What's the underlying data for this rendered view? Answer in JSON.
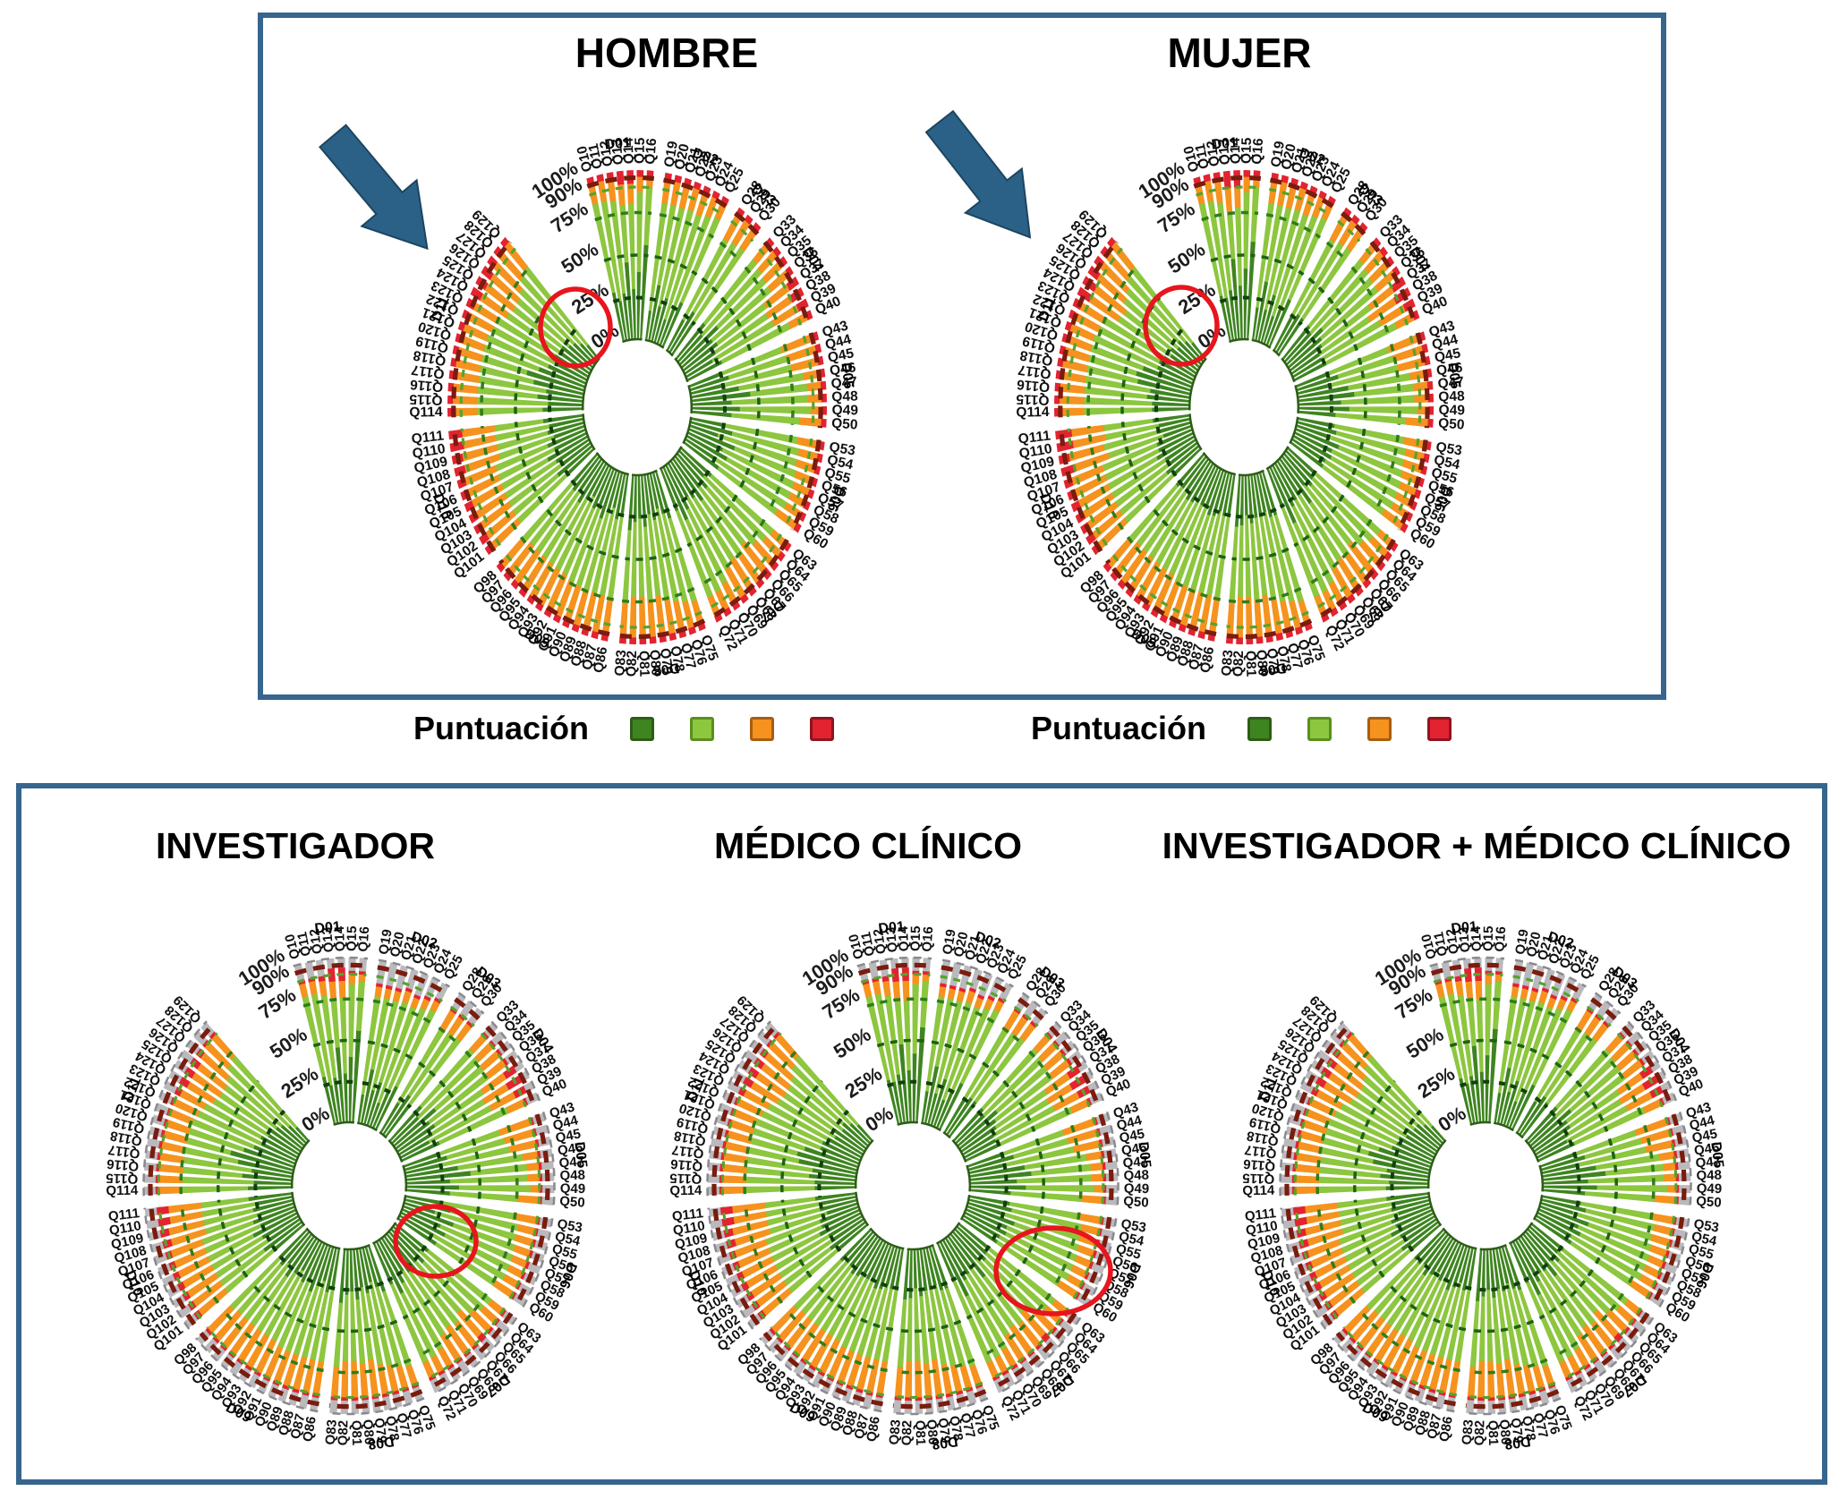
{
  "legend": {
    "label": "Puntuación",
    "colors": [
      "#3e8420",
      "#8dc63f",
      "#f6921e",
      "#e22330"
    ],
    "border_colors": [
      "#2e5c16",
      "#5a8f1d",
      "#a65e12",
      "#8f1420"
    ],
    "no_data_color": "#b9b9be"
  },
  "axis": {
    "ticks": [
      {
        "label": "100%",
        "value": 100
      },
      {
        "label": "90%",
        "value": 90
      },
      {
        "label": "75%",
        "value": 75
      },
      {
        "label": "50%",
        "value": 50
      },
      {
        "label": "25%",
        "value": 25
      },
      {
        "label": "0%",
        "value": 0
      }
    ],
    "guide_rings": [
      25,
      50,
      75,
      90,
      95.5
    ]
  },
  "groups": [
    {
      "id": "D01",
      "questions": [
        "Q10",
        "Q11",
        "Q12",
        "Q13",
        "Q14",
        "Q15",
        "Q16"
      ]
    },
    {
      "id": "D02",
      "questions": [
        "Q19",
        "Q20",
        "Q21",
        "Q22",
        "Q23",
        "Q24",
        "Q25"
      ]
    },
    {
      "id": "D03",
      "questions": [
        "Q28",
        "Q29",
        "Q30"
      ]
    },
    {
      "id": "D04",
      "questions": [
        "Q33",
        "Q34",
        "Q35",
        "Q36",
        "Q37",
        "Q38",
        "Q39",
        "Q40"
      ]
    },
    {
      "id": "D05",
      "questions": [
        "Q43",
        "Q44",
        "Q45",
        "Q46",
        "Q47",
        "Q48",
        "Q49",
        "Q50"
      ]
    },
    {
      "id": "D06",
      "questions": [
        "Q53",
        "Q54",
        "Q55",
        "Q56",
        "Q57",
        "Q58",
        "Q59",
        "Q60"
      ]
    },
    {
      "id": "D07",
      "questions": [
        "Q63",
        "Q64",
        "Q65",
        "Q66",
        "Q67",
        "Q68",
        "Q69",
        "Q70",
        "Q71",
        "Q72"
      ]
    },
    {
      "id": "D08",
      "questions": [
        "Q75",
        "Q76",
        "Q77",
        "Q78",
        "Q79",
        "Q80",
        "Q81",
        "Q82",
        "Q83"
      ]
    },
    {
      "id": "D09",
      "questions": [
        "Q86",
        "Q87",
        "Q88",
        "Q89",
        "Q90",
        "Q91",
        "Q92",
        "Q93",
        "Q94",
        "Q95",
        "Q96",
        "Q97",
        "Q98"
      ]
    },
    {
      "id": "D10",
      "questions": [
        "Q101",
        "Q102",
        "Q103",
        "Q104",
        "Q105",
        "Q106",
        "Q107",
        "Q108",
        "Q109",
        "Q110",
        "Q111"
      ]
    },
    {
      "id": "D11",
      "questions": [
        "Q114",
        "Q115",
        "Q116",
        "Q117",
        "Q118",
        "Q119",
        "Q120",
        "Q121",
        "Q122",
        "Q123",
        "Q124",
        "Q125",
        "Q126",
        "Q127",
        "Q128",
        "Q129"
      ]
    }
  ],
  "annotations": {
    "blue_arrow_charts": [
      "HOMBRE",
      "MUJER"
    ],
    "red_circle_charts": [
      "HOMBRE",
      "MUJER",
      "INVESTIGADOR",
      "MÉDICO CLÍNICO"
    ]
  },
  "chart_data": [
    {
      "title": "HOMBRE",
      "type": "circular-stacked-bar",
      "panel": "top",
      "stack_categories": [
        "dark_green",
        "light_green",
        "orange",
        "red"
      ],
      "blue_arrow": true,
      "red_circle": true,
      "values": {
        "D01": "30,54,12,4;24,60,12,4;28,55,13,4;46,34,12,8;30,50,12,8;40,47,9,4;56,34,6,4",
        "D02": "18,64,14,4;34,48,14,4;22,60,14,4;28,55,13,4;16,66,14,4;26,58,12,4;30,56,10,4",
        "D03": "22,56,18,4;30,50,16,4;26,55,15,4",
        "D04": "30,52,14,4;24,57,15,4;36,44,16,4;28,52,16,4;30,42,20,8;26,44,20,10;22,50,20,8;28,54,14,4",
        "D05": "26,46,24,4;30,44,22,4;24,52,20,4;36,48,12,4;44,42,10,4;30,56,10,4;36,52,8,4;30,50,16,4",
        "D06": "26,54,16,4;32,50,14,4;22,60,14,4;36,47,13,4;28,56,12,4;33,51,12,4;26,58,12,4;30,50,16,4",
        "D07": "28,56,12,4;24,58,14,4;30,48,18,4;26,46,22,6;33,43,20,4;28,46,22,4;25,51,20,4;31,51,14,4;36,48,12,4;28,56,12,4",
        "D08": "30,52,14,4;26,54,16,4;22,56,18,4;28,48,20,4;24,48,24,4;31,43,22,4;26,46,24,4;28,44,24,4;33,43,20,4",
        "D09": "24,50,22,4;28,46,22,4;22,52,22,4;26,48,22,4;31,43,22,4;24,50,22,4;28,44,24,4;22,50,24,4;26,46,24,4;31,41,24,4;24,48,24,4;28,44,24,4;26,48,22,4",
        "D10": "26,44,24,6;31,39,24,6;24,46,24,6;28,42,24,6;33,37,24,6;26,44,24,6;30,40,24,6;24,42,26,8;28,38,26,8;26,40,24,10;30,36,24,10",
        "D11": "30,48,18,4;26,52,18,4;34,44,18,4;28,50,18,4;38,40,18,4;44,34,18,4;36,42,18,4;30,48,18,4;26,50,20,4;28,46,20,6;24,46,22,8;26,42,24,8;22,46,24,8;20,50,24,6;16,58,22,4;12,64,20,4"
      }
    },
    {
      "title": "MUJER",
      "type": "circular-stacked-bar",
      "panel": "top",
      "stack_categories": [
        "dark_green",
        "light_green",
        "orange",
        "red"
      ],
      "blue_arrow": true,
      "red_circle": true,
      "values": {
        "D01": "28,56,12,4;26,58,12,4;30,52,13,5;48,28,14,10;32,46,12,10;42,45,9,4;58,32,6,4",
        "D02": "20,62,14,4;36,46,14,4;20,62,14,4;30,53,13,4;18,64,14,4;24,60,12,4;32,54,10,4",
        "D03": "24,54,18,4;28,52,16,4;28,53,15,4",
        "D04": "28,54,14,4;26,55,15,4;34,46,16,4;30,50,16,4;28,42,20,10;24,42,22,12;24,48,20,8;26,56,14,4",
        "D05": "24,48,24,4;32,42,22,4;26,50,20,4;38,46,12,4;42,44,10,4;32,54,10,4;38,50,8,4;28,52,16,4",
        "D06": "28,52,16,4;30,52,14,4;24,58,14,4;34,49,13,4;30,54,12,4;31,53,12,4;28,56,12,4;28,52,16,4",
        "D07": "26,58,12,4;26,56,14,4;28,50,18,4;24,48,22,6;35,41,20,4;26,48,22,4;27,49,20,4;29,53,14,4;38,46,12,4;26,58,12,4",
        "D08": "28,54,14,4;28,52,16,4;24,54,18,4;26,50,20,4;26,46,24,4;29,45,22,4;24,48,24,4;30,42,24,4;31,45,20,4",
        "D09": "26,48,22,4;26,48,22,4;24,50,22,4;28,46,22,4;29,45,22,4;26,48,22,4;26,46,24,4;24,48,24,4;28,44,24,4;29,43,24,4;26,46,24,4;26,46,24,4;28,46,22,4",
        "D10": "24,46,24,6;29,41,24,6;26,44,24,6;26,44,24,6;31,39,24,6;28,42,24,6;28,42,24,6;22,42,26,10;26,40,26,8;24,40,24,12;28,36,24,12",
        "D11": "28,50,18,4;28,50,18,4;32,46,18,4;30,48,18,4;40,38,18,4;42,36,18,4;38,40,18,4;28,50,18,4;28,48,20,4;26,48,20,6;22,44,24,10;24,40,26,10;20,48,24,8;22,48,24,6;18,56,22,4;14,62,20,4"
      }
    },
    {
      "title": "INVESTIGADOR",
      "type": "circular-stacked-bar",
      "panel": "bottom",
      "stack_categories": [
        "dark_green",
        "light_green",
        "orange",
        "red",
        "grey_no_data"
      ],
      "blue_arrow": false,
      "red_circle": true,
      "values": {
        "D01": "30,50,8,2,10;24,56,8,2,10;28,50,9,3,10;46,30,10,8,6;30,46,10,8,6;40,44,6,2,8;56,30,4,2,8",
        "D02": "18,60,6,2,14;34,44,6,2,14;22,56,6,2,14;28,51,7,2,12;16,62,6,2,14;26,54,6,2,12;30,52,6,2,10",
        "D03": "22,52,14,2,10;30,46,12,2,10;26,51,11,2,10",
        "D04": "30,48,12,2,8;24,53,13,2,8;36,40,14,2,8;28,48,14,2,8;30,38,18,8,6;26,40,18,10,6;22,46,18,8,6;28,50,12,2,8",
        "D05": "26,42,22,2,8;30,40,20,2,8;24,48,18,2,8;36,44,10,2,8;44,38,8,2,8;30,52,8,2,8;36,48,6,2,8;30,46,14,2,8",
        "D06": "26,50,14,2,8;32,46,12,2,8;22,56,12,2,8;36,43,11,2,8;28,52,10,2,8;33,47,10,2,8;26,54,10,2,8;30,46,14,2,8",
        "D07": "28,52,10,2,8;24,54,12,2,8;30,44,16,2,8;26,42,20,4,8;33,39,18,2,8;28,42,20,2,8;25,47,18,2,8;31,47,12,2,8;36,44,10,2,8;28,52,10,2,8",
        "D08": "30,48,12,2,8;26,50,14,2,8;22,52,16,2,8;28,44,18,2,8;24,44,22,2,8;31,39,20,2,8;26,42,22,2,8;28,40,22,2,8;33,39,18,2,8",
        "D09": "24,46,20,2,8;28,42,20,2,8;22,48,20,2,8;26,44,20,2,8;31,39,20,2,8;24,46,20,2,8;28,40,22,2,8;22,46,22,2,8;26,42,22,2,8;31,37,22,2,8;24,44,22,2,8;28,40,22,2,8;26,44,20,2,8",
        "D10": "26,40,22,4,8;31,35,22,4,8;24,42,22,4,8;28,38,22,4,8;33,33,22,4,8;26,40,22,4,8;30,36,22,4,8;24,38,24,6,8;28,34,24,6,8;26,36,22,8,8;30,32,22,8,8",
        "D11": "30,44,16,2,8;26,48,16,2,8;34,40,16,2,8;28,46,16,2,8;38,36,16,2,8;44,30,16,2,8;36,38,16,2,8;30,44,16,2,8;26,46,18,2,8;28,42,18,4,8;24,42,20,6,8;26,38,22,6,8;22,42,22,6,8;20,46,22,4,8;16,54,20,2,8;12,60,18,2,8"
      }
    },
    {
      "title": "MÉDICO CLÍNICO",
      "type": "circular-stacked-bar",
      "panel": "bottom",
      "stack_categories": [
        "dark_green",
        "light_green",
        "orange",
        "red",
        "grey_no_data"
      ],
      "blue_arrow": false,
      "red_circle": true,
      "values": {
        "D01": "28,52,8,2,10;26,54,8,2,10;30,48,9,3,10;48,26,12,8,6;32,42,12,8,6;42,42,6,2,8;58,28,4,2,8",
        "D02": "20,58,6,2,14;36,42,6,2,14;20,58,6,2,14;30,49,7,2,12;18,60,6,2,14;24,56,6,2,12;32,50,6,2,10",
        "D03": "24,50,14,2,10;28,48,12,2,10;28,49,11,2,10",
        "D04": "28,50,12,2,8;26,51,13,2,8;34,42,14,2,8;30,46,14,2,8;28,40,18,8,6;24,42,18,10,6;24,44,18,8,6;26,52,12,2,8",
        "D05": "24,44,22,2,8;32,38,20,2,8;26,46,18,2,8;38,42,10,2,8;42,40,8,2,8;32,50,8,2,8;38,46,6,2,8;28,48,14,2,8",
        "D06": "28,48,14,2,8;30,48,12,2,8;24,54,12,2,8;34,45,11,2,8;30,50,10,2,8;31,49,10,2,8;28,52,10,2,8;28,48,14,2,8",
        "D07": "26,54,10,2,8;26,52,12,2,8;28,46,16,2,8;24,44,20,4,8;35,37,18,2,8;26,44,20,2,8;27,45,18,2,8;29,49,12,2,8;38,42,10,2,8;26,54,10,2,8",
        "D08": "28,50,12,2,8;28,48,14,2,8;24,50,16,2,8;26,46,18,2,8;26,42,22,2,8;29,41,20,2,8;24,44,22,2,8;30,38,22,2,8;31,41,18,2,8",
        "D09": "26,44,20,2,8;26,44,20,2,8;24,46,20,2,8;28,42,20,2,8;29,41,20,2,8;26,44,20,2,8;26,42,22,2,8;24,44,22,2,8;28,40,22,2,8;29,39,22,2,8;26,42,22,2,8;26,42,22,2,8;28,42,20,2,8",
        "D10": "24,42,22,4,8;29,37,22,4,8;26,40,22,4,8;26,40,22,4,8;31,35,22,4,8;28,38,22,4,8;28,38,22,4,8;22,40,24,6,8;26,36,24,6,8;24,38,22,8,8;28,34,22,8,8",
        "D11": "28,46,16,2,8;28,46,16,2,8;32,42,16,2,8;30,44,16,2,8;40,34,16,2,8;42,32,16,2,8;38,36,16,2,8;28,46,16,2,8;28,44,18,2,8;26,44,18,4,8;22,44,20,6,8;24,40,22,6,8;20,44,22,6,8;22,44,22,4,8;18,52,20,2,8;14,58,18,2,8"
      }
    },
    {
      "title": "INVESTIGADOR + MÉDICO CLÍNICO",
      "type": "circular-stacked-bar",
      "panel": "bottom",
      "stack_categories": [
        "dark_green",
        "light_green",
        "orange",
        "red",
        "grey_no_data"
      ],
      "blue_arrow": false,
      "red_circle": false,
      "values": {
        "D01": "29,51,8,2,10;25,55,8,2,10;29,49,9,3,10;47,28,11,8,6;31,44,11,8,6;41,43,6,2,8;57,29,4,2,8",
        "D02": "19,59,6,2,14;35,43,6,2,14;21,57,6,2,14;29,50,7,2,12;17,61,6,2,14;25,55,6,2,12;31,51,6,2,10",
        "D03": "23,51,14,2,10;29,47,12,2,10;27,50,11,2,10",
        "D04": "29,49,12,2,8;25,52,13,2,8;35,41,14,2,8;29,47,14,2,8;29,39,18,8,6;25,41,18,10,6;23,45,18,8,6;27,51,12,2,8",
        "D05": "25,43,22,2,8;31,39,20,2,8;25,47,18,2,8;37,43,10,2,8;43,39,8,2,8;31,51,8,2,8;37,47,6,2,8;29,47,14,2,8",
        "D06": "27,49,14,2,8;31,47,12,2,8;23,55,12,2,8;35,44,11,2,8;29,51,10,2,8;32,48,10,2,8;27,53,10,2,8;29,47,14,2,8",
        "D07": "27,53,10,2,8;25,53,12,2,8;29,45,16,2,8;25,43,20,4,8;34,38,18,2,8;27,43,20,2,8;26,46,18,2,8;30,48,12,2,8;37,43,10,2,8;27,53,10,2,8",
        "D08": "29,49,12,2,8;27,49,14,2,8;23,51,16,2,8;27,45,18,2,8;25,43,22,2,8;30,40,20,2,8;25,43,22,2,8;29,39,22,2,8;32,40,18,2,8",
        "D09": "25,45,20,2,8;27,43,20,2,8;23,47,20,2,8;27,43,20,2,8;30,40,20,2,8;25,45,20,2,8;27,41,22,2,8;23,45,22,2,8;27,41,22,2,8;30,38,22,2,8;25,43,22,2,8;27,41,22,2,8;27,43,20,2,8",
        "D10": "25,41,22,4,8;30,36,22,4,8;25,41,22,4,8;27,39,22,4,8;32,34,22,4,8;27,39,22,4,8;29,37,22,4,8;23,39,24,6,8;27,35,24,6,8;25,37,22,8,8;29,33,22,8,8",
        "D11": "29,45,16,2,8;27,47,16,2,8;33,41,16,2,8;29,45,16,2,8;39,35,16,2,8;43,31,16,2,8;37,37,16,2,8;29,45,16,2,8;27,45,18,2,8;27,43,18,4,8;23,43,20,6,8;25,39,22,6,8;21,43,22,6,8;21,45,22,4,8;17,53,20,2,8;13,59,18,2,8"
      }
    }
  ]
}
